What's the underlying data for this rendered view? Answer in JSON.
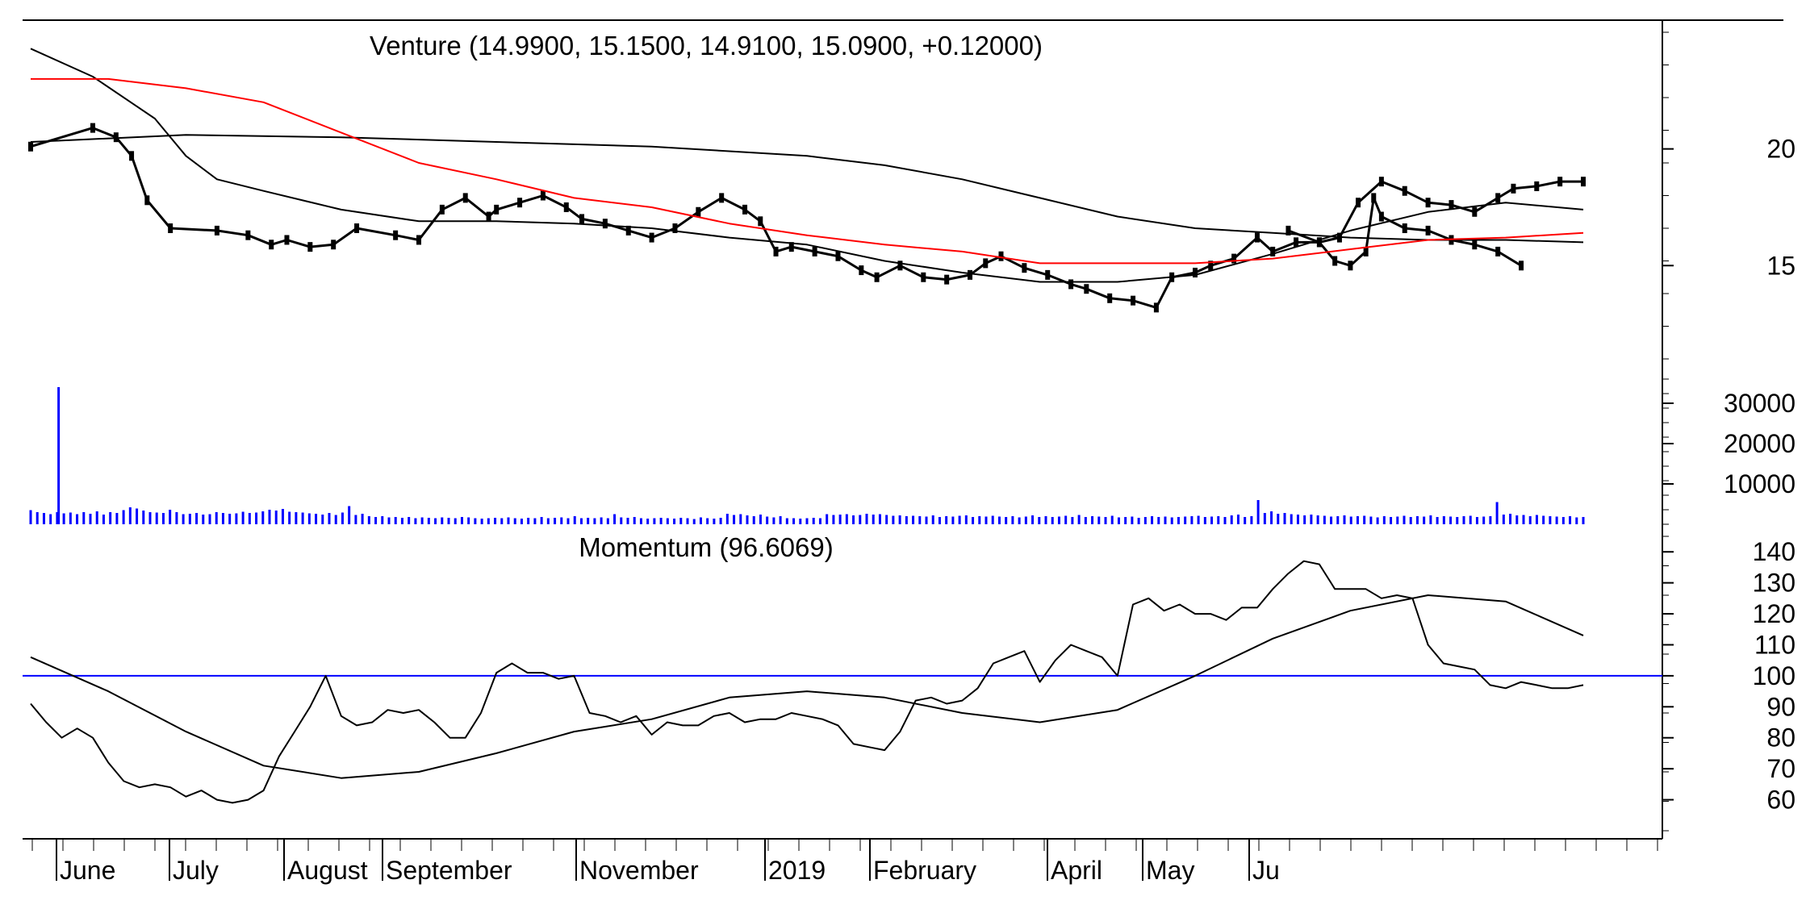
{
  "chart_data": [
    {
      "type": "candlestick",
      "title": "Venture (14.9900, 15.1500, 14.9100, 15.0900, +0.12000)",
      "ylim": [
        11,
        25
      ],
      "yticks": [
        {
          "value": 20,
          "label": "20"
        },
        {
          "value": 15,
          "label": "15"
        }
      ],
      "series": [
        {
          "color": "#000000",
          "kind": "price",
          "t": [
            0.0,
            0.04,
            0.055,
            0.065,
            0.075,
            0.09,
            0.12,
            0.14,
            0.155,
            0.165,
            0.18,
            0.195,
            0.21,
            0.235,
            0.25,
            0.265,
            0.28,
            0.295,
            0.3,
            0.315,
            0.33,
            0.345,
            0.355,
            0.37,
            0.385,
            0.4,
            0.415,
            0.43,
            0.445,
            0.46,
            0.47,
            0.48,
            0.49,
            0.505,
            0.52,
            0.535,
            0.545,
            0.56,
            0.575,
            0.59,
            0.605,
            0.615,
            0.625,
            0.64,
            0.655,
            0.67,
            0.68,
            0.695,
            0.71,
            0.725,
            0.735,
            0.75,
            0.76,
            0.775,
            0.79,
            0.8,
            0.815,
            0.83,
            0.843,
            0.855,
            0.87,
            0.885,
            0.9,
            0.915,
            0.93,
            0.945,
            0.955,
            0.97,
            0.985,
            1.0
          ],
          "y": [
            20.1,
            20.9,
            20.5,
            19.7,
            17.8,
            16.6,
            16.5,
            16.3,
            15.9,
            16.1,
            15.8,
            15.9,
            16.6,
            16.3,
            16.1,
            17.4,
            17.9,
            17.1,
            17.4,
            17.7,
            18.0,
            17.5,
            17.0,
            16.8,
            16.5,
            16.2,
            16.6,
            17.3,
            17.9,
            17.4,
            16.9,
            15.6,
            15.8,
            15.6,
            15.4,
            14.8,
            14.5,
            15.0,
            14.5,
            14.4,
            14.6,
            15.1,
            15.4,
            14.9,
            14.6,
            14.2,
            14.0,
            13.6,
            13.5,
            13.2,
            14.5,
            14.7,
            15.0,
            15.3,
            16.2,
            15.6,
            16.0,
            16.0,
            16.2,
            17.7,
            18.6,
            18.2,
            17.7,
            17.6,
            17.3,
            17.9,
            18.3,
            18.4,
            18.6,
            18.6
          ]
        },
        {
          "color": "#000000",
          "kind": "price",
          "t": [
            0.81,
            0.83,
            0.84,
            0.85,
            0.86,
            0.865,
            0.87,
            0.885,
            0.9,
            0.915,
            0.93,
            0.945,
            0.96
          ],
          "y": [
            16.5,
            16.0,
            15.2,
            15.0,
            15.6,
            17.9,
            17.1,
            16.6,
            16.5,
            16.1,
            15.9,
            15.6,
            15.0
          ]
        },
        {
          "color": "#000000",
          "kind": "ma-fast",
          "t": [
            0.0,
            0.04,
            0.08,
            0.1,
            0.12,
            0.15,
            0.2,
            0.25,
            0.3,
            0.35,
            0.4,
            0.45,
            0.5,
            0.55,
            0.6,
            0.65,
            0.7,
            0.75,
            0.8,
            0.85,
            0.9,
            0.95,
            1.0
          ],
          "y": [
            24.3,
            23.1,
            21.3,
            19.7,
            18.7,
            18.2,
            17.4,
            16.9,
            16.9,
            16.8,
            16.6,
            16.2,
            15.9,
            15.2,
            14.7,
            14.3,
            14.3,
            14.6,
            15.5,
            16.5,
            17.3,
            17.7,
            17.4
          ]
        },
        {
          "color": "#000000",
          "kind": "ma-slow",
          "t": [
            0.0,
            0.1,
            0.2,
            0.3,
            0.4,
            0.5,
            0.55,
            0.6,
            0.65,
            0.7,
            0.75,
            0.8,
            0.85,
            0.9,
            0.95,
            1.0
          ],
          "y": [
            20.3,
            20.6,
            20.5,
            20.3,
            20.1,
            19.7,
            19.3,
            18.7,
            17.9,
            17.1,
            16.6,
            16.4,
            16.2,
            16.1,
            16.1,
            16.0
          ]
        },
        {
          "color": "#ff0000",
          "kind": "ma-red",
          "t": [
            0.0,
            0.05,
            0.1,
            0.15,
            0.2,
            0.25,
            0.3,
            0.35,
            0.4,
            0.45,
            0.5,
            0.55,
            0.6,
            0.65,
            0.7,
            0.75,
            0.8,
            0.85,
            0.9,
            0.95,
            1.0
          ],
          "y": [
            23.0,
            23.0,
            22.6,
            22.0,
            20.7,
            19.4,
            18.7,
            17.9,
            17.5,
            16.8,
            16.3,
            15.9,
            15.6,
            15.1,
            15.1,
            15.1,
            15.3,
            15.7,
            16.1,
            16.2,
            16.4
          ]
        }
      ]
    },
    {
      "type": "bar",
      "title": "",
      "ylim": [
        0,
        36000
      ],
      "yticks": [
        {
          "value": 30000,
          "label": "30000"
        },
        {
          "value": 20000,
          "label": "20000"
        },
        {
          "value": 10000,
          "label": "10000"
        }
      ],
      "color": "#0000ff",
      "spike": {
        "t": 0.018,
        "value": 34000
      },
      "values": [
        3500,
        3000,
        2800,
        2500,
        3000,
        2700,
        2900,
        2500,
        3000,
        2600,
        3200,
        2400,
        3000,
        2800,
        3500,
        4200,
        3900,
        3400,
        3000,
        2900,
        2800,
        3600,
        3000,
        2500,
        2600,
        2800,
        2400,
        2500,
        3000,
        2800,
        2600,
        2700,
        3100,
        2800,
        2900,
        3200,
        3600,
        3400,
        3800,
        3100,
        3000,
        2900,
        2700,
        2600,
        2400,
        2800,
        2300,
        2900,
        4500,
        2300,
        2600,
        2000,
        1800,
        2000,
        1700,
        1800,
        1600,
        1800,
        1500,
        1700,
        1600,
        1500,
        1700,
        1600,
        1500,
        1800,
        1700,
        1500,
        1400,
        1500,
        1600,
        1500,
        1700,
        1500,
        1400,
        1600,
        1500,
        1800,
        1500,
        1600,
        1700,
        1500,
        2000,
        1500,
        1600,
        1500,
        1700,
        1500,
        2500,
        1700,
        1600,
        1800,
        1500,
        1400,
        1500,
        1600,
        1500,
        1400,
        1600,
        1500,
        1300,
        1700,
        1500,
        1400,
        1600,
        2600,
        2300,
        2500,
        2200,
        2000,
        2400,
        1900,
        1700,
        2000,
        1500,
        1500,
        1400,
        1500,
        1600,
        1500,
        2500,
        2300,
        2400,
        2500,
        2200,
        2300,
        2600,
        2400,
        2500,
        2300,
        2100,
        2200,
        2000,
        2100,
        2000,
        1900,
        2200,
        1800,
        2000,
        1900,
        2100,
        2200,
        1800,
        2000,
        1900,
        2100,
        1900,
        1800,
        2000,
        1700,
        1900,
        2200,
        1800,
        2000,
        1800,
        1900,
        2100,
        1800,
        2300,
        1800,
        2000,
        1900,
        1800,
        2100,
        1700,
        1800,
        1900,
        1600,
        1800,
        2000,
        1800,
        1900,
        1700,
        1800,
        1900,
        2000,
        2100,
        1800,
        1900,
        2000,
        1800,
        2200,
        2400,
        1800,
        2000,
        6000,
        2800,
        3200,
        2600,
        2800,
        2500,
        2400,
        2200,
        2400,
        2200,
        2100,
        1900,
        2000,
        2200,
        1900,
        2000,
        2100,
        1900,
        1700,
        2000,
        1800,
        1900,
        2100,
        1800,
        2000,
        1900,
        2200,
        1800,
        2000,
        1900,
        1800,
        2000,
        2100,
        1800,
        1900,
        2000,
        5500,
        2400,
        2600,
        2200,
        2300,
        2000,
        2300,
        2100,
        2000,
        1900,
        1800,
        2000,
        1700,
        1800
      ]
    },
    {
      "type": "line",
      "title": "Momentum (96.6069)",
      "ylim": [
        50,
        145
      ],
      "yticks": [
        {
          "value": 140,
          "label": "140"
        },
        {
          "value": 130,
          "label": "130"
        },
        {
          "value": 120,
          "label": "120"
        },
        {
          "value": 110,
          "label": "110"
        },
        {
          "value": 100,
          "label": "100"
        },
        {
          "value": 90,
          "label": "90"
        },
        {
          "value": 80,
          "label": "80"
        },
        {
          "value": 70,
          "label": "70"
        },
        {
          "value": 60,
          "label": "60"
        }
      ],
      "reference": {
        "value": 100,
        "color": "#0000ff"
      },
      "series": [
        {
          "color": "#000000",
          "kind": "momentum",
          "t": [
            0.0,
            0.01,
            0.02,
            0.03,
            0.04,
            0.05,
            0.06,
            0.07,
            0.08,
            0.09,
            0.1,
            0.11,
            0.12,
            0.13,
            0.14,
            0.15,
            0.16,
            0.17,
            0.18,
            0.19,
            0.2,
            0.21,
            0.22,
            0.23,
            0.24,
            0.25,
            0.26,
            0.27,
            0.28,
            0.29,
            0.3,
            0.31,
            0.32,
            0.33,
            0.34,
            0.35,
            0.36,
            0.37,
            0.38,
            0.39,
            0.4,
            0.41,
            0.42,
            0.43,
            0.44,
            0.45,
            0.46,
            0.47,
            0.48,
            0.49,
            0.5,
            0.51,
            0.52,
            0.53,
            0.54,
            0.55,
            0.56,
            0.57,
            0.58,
            0.59,
            0.6,
            0.61,
            0.62,
            0.63,
            0.64,
            0.65,
            0.66,
            0.67,
            0.68,
            0.69,
            0.7,
            0.71,
            0.72,
            0.73,
            0.74,
            0.75,
            0.76,
            0.77,
            0.78,
            0.79,
            0.8,
            0.81,
            0.82,
            0.83,
            0.84,
            0.85,
            0.86,
            0.87,
            0.88,
            0.89,
            0.9,
            0.91,
            0.92,
            0.93,
            0.94,
            0.95,
            0.96,
            0.97,
            0.98,
            0.99,
            1.0
          ],
          "y": [
            91,
            85,
            80,
            83,
            80,
            72,
            66,
            64,
            65,
            64,
            61,
            63,
            60,
            59,
            60,
            63,
            74,
            82,
            90,
            100,
            87,
            84,
            85,
            89,
            88,
            89,
            85,
            80,
            80,
            88,
            101,
            104,
            101,
            101,
            99,
            100,
            88,
            87,
            85,
            87,
            81,
            85,
            84,
            84,
            87,
            88,
            85,
            86,
            86,
            88,
            87,
            86,
            84,
            78,
            77,
            76,
            82,
            92,
            93,
            91,
            92,
            96,
            104,
            106,
            108,
            98,
            105,
            110,
            108,
            106,
            100,
            123,
            125,
            121,
            123,
            120,
            120,
            118,
            122,
            122,
            128,
            133,
            137,
            136,
            128,
            128,
            128,
            125,
            126,
            125,
            110,
            104,
            103,
            102,
            97,
            96,
            98,
            97,
            96,
            96,
            97
          ]
        },
        {
          "color": "#000000",
          "kind": "momentum-avg",
          "t": [
            0.0,
            0.05,
            0.1,
            0.15,
            0.2,
            0.25,
            0.3,
            0.35,
            0.4,
            0.45,
            0.5,
            0.55,
            0.6,
            0.65,
            0.7,
            0.75,
            0.8,
            0.85,
            0.9,
            0.95,
            1.0
          ],
          "y": [
            106,
            95,
            82,
            71,
            67,
            69,
            75,
            82,
            86,
            93,
            95,
            93,
            88,
            85,
            89,
            100,
            112,
            121,
            126,
            124,
            113
          ]
        }
      ]
    }
  ],
  "x_axis": {
    "labels": [
      "June",
      "July",
      "August",
      "September",
      "November",
      "2019",
      "February",
      "April",
      "May",
      "Ju"
    ]
  }
}
